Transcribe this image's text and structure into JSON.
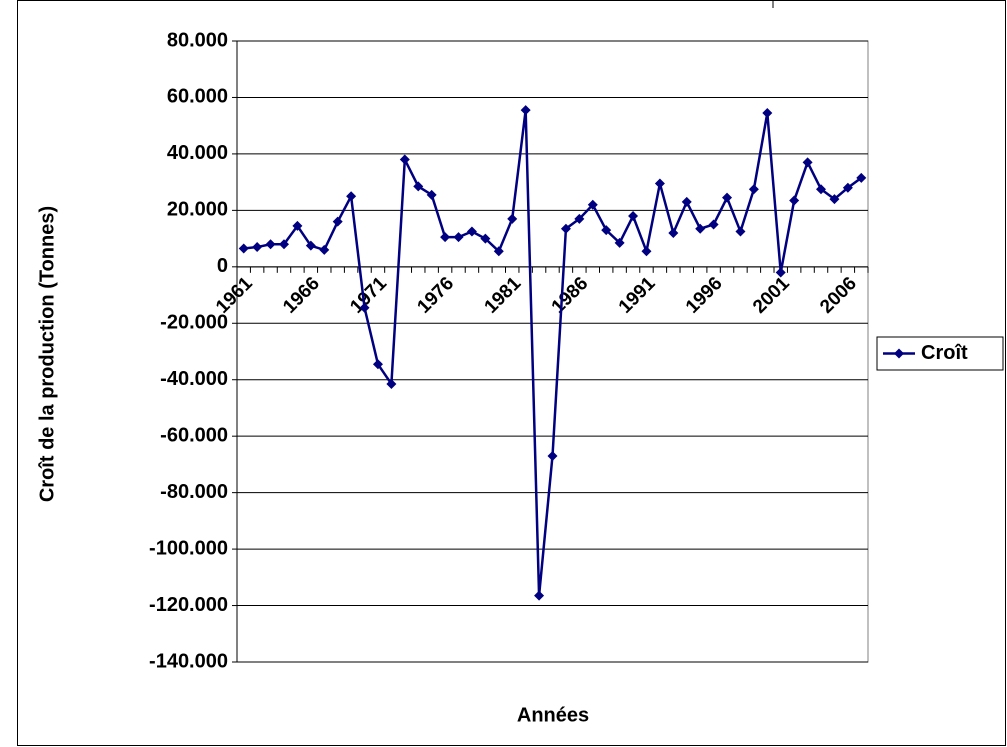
{
  "chart_data": {
    "type": "line",
    "y_label": "Croît de la production (Tonnes)",
    "x_label": "Années",
    "categories": [
      "1961",
      null,
      null,
      null,
      null,
      "1966",
      null,
      null,
      null,
      null,
      "1971",
      null,
      null,
      null,
      null,
      "1976",
      null,
      null,
      null,
      null,
      "1981",
      null,
      null,
      null,
      null,
      "1986",
      null,
      null,
      null,
      null,
      "1991",
      null,
      null,
      null,
      null,
      "1996",
      null,
      null,
      null,
      null,
      "2001",
      null,
      null,
      null,
      null,
      "2006",
      null
    ],
    "series": [
      {
        "name": "Croît",
        "color": "#000080",
        "values": [
          6500,
          7000,
          8000,
          8000,
          14500,
          7500,
          6000,
          16000,
          25000,
          -14500,
          -34500,
          -41500,
          38000,
          28500,
          25500,
          10500,
          10500,
          12500,
          10000,
          5500,
          17000,
          55500,
          -116500,
          -67000,
          13500,
          17000,
          22000,
          13000,
          8500,
          18000,
          5500,
          29500,
          12000,
          23000,
          13500,
          15000,
          24500,
          12500,
          27500,
          54500,
          -2000,
          23500,
          37000,
          27500,
          24000,
          28000,
          31500
        ]
      }
    ],
    "ylim": [
      -140000,
      80000
    ],
    "yticks": [
      {
        "value": -140000,
        "label": "-140.000"
      },
      {
        "value": -120000,
        "label": "-120.000"
      },
      {
        "value": -100000,
        "label": "-100.000"
      },
      {
        "value": -80000,
        "label": "-80.000"
      },
      {
        "value": -60000,
        "label": "-60.000"
      },
      {
        "value": -40000,
        "label": "-40.000"
      },
      {
        "value": -20000,
        "label": "-20.000"
      },
      {
        "value": 0,
        "label": "0"
      },
      {
        "value": 20000,
        "label": "20.000"
      },
      {
        "value": 40000,
        "label": "40.000"
      },
      {
        "value": 60000,
        "label": "60.000"
      },
      {
        "value": 80000,
        "label": "80.000"
      }
    ],
    "grid": true,
    "legend": "right"
  }
}
